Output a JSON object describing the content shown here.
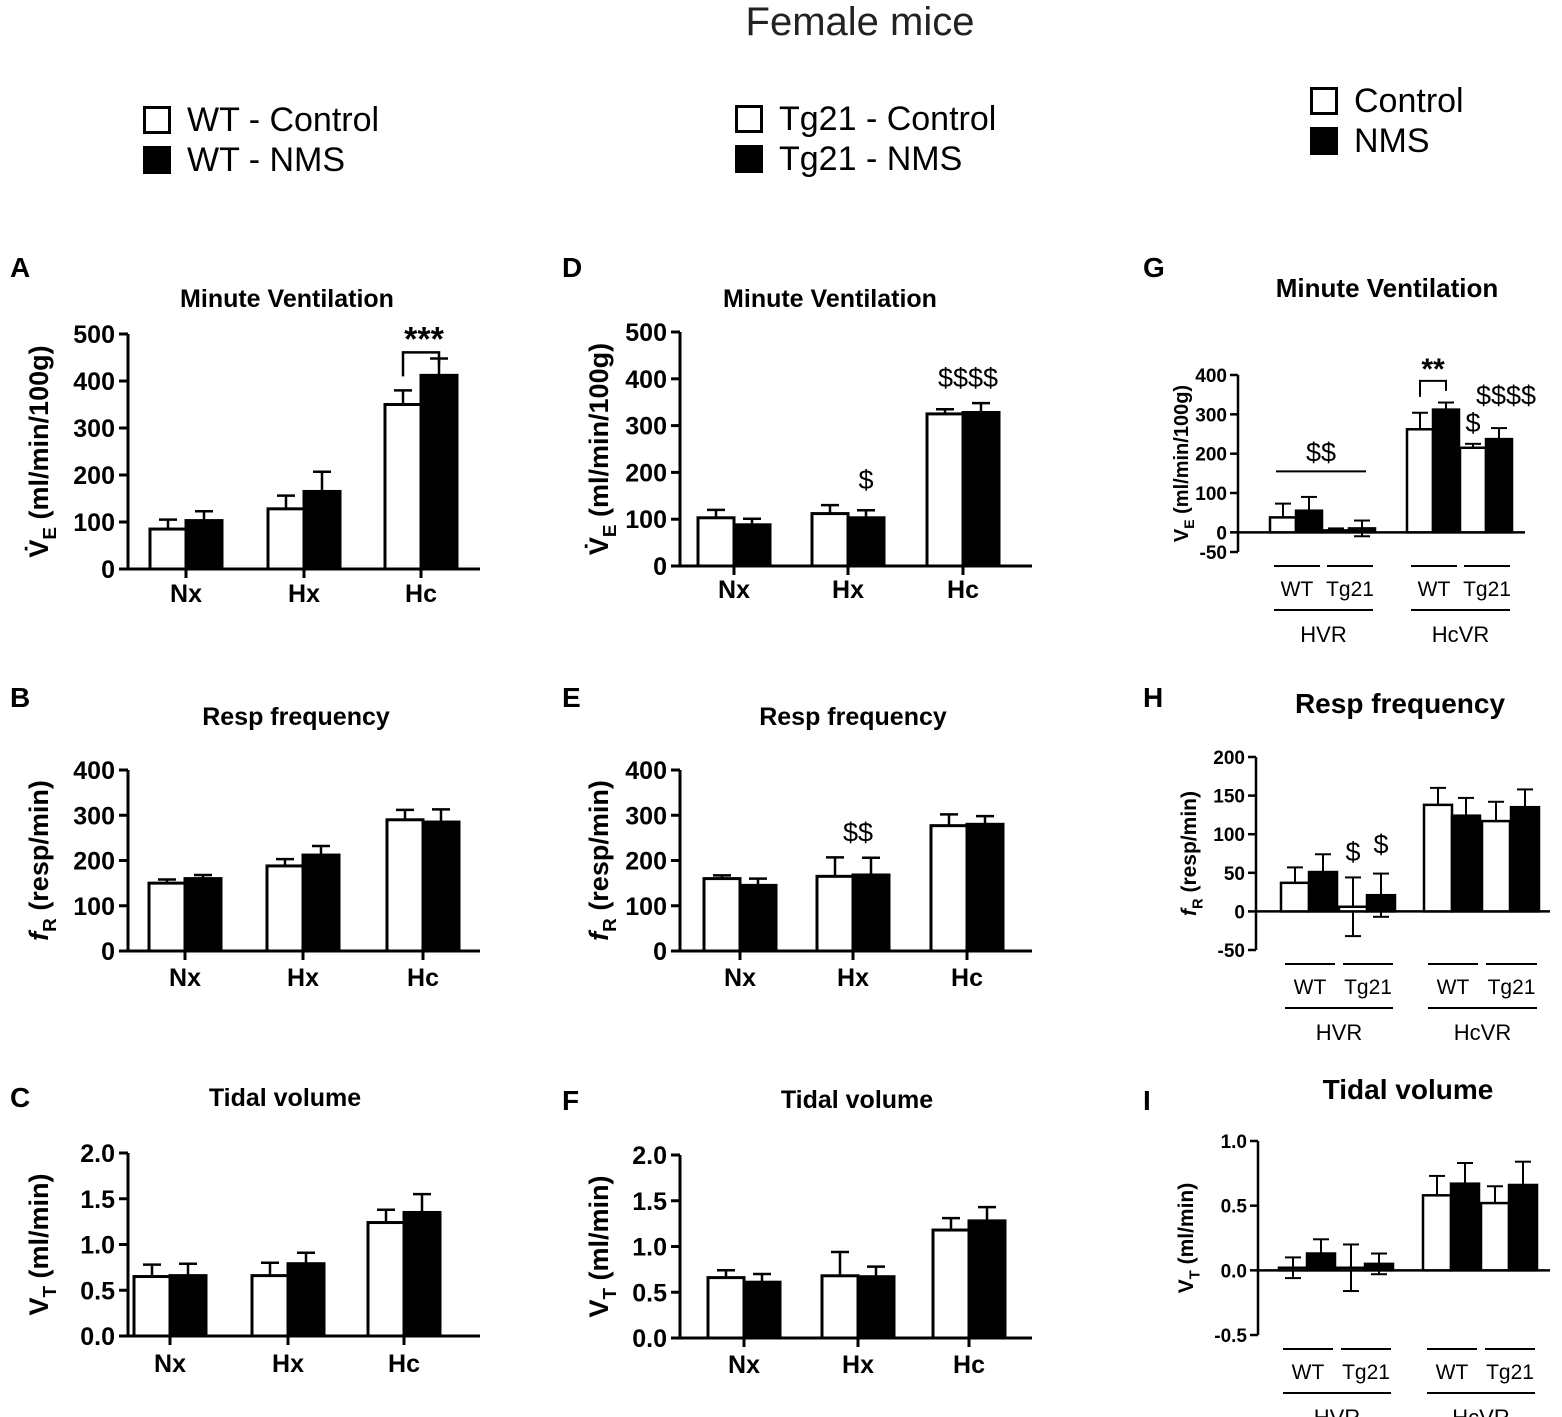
{
  "main_title": "Female mice",
  "legends": {
    "wt": {
      "control": "WT - Control",
      "nms": "WT - NMS"
    },
    "tg21": {
      "control": "Tg21 - Control",
      "nms": "Tg21 - NMS"
    },
    "responses": {
      "control": "Control",
      "nms": "NMS"
    }
  },
  "colors": {
    "control": "#ffffff",
    "nms": "#000000"
  },
  "chart_data": [
    {
      "panel": "A",
      "type": "bar",
      "title": "Minute Ventilation",
      "ylabel": "V̇E (ml/min/100g)",
      "ylim": [
        0,
        500
      ],
      "yticks": [
        "0",
        "100",
        "200",
        "300",
        "400",
        "500"
      ],
      "categories": [
        "Nx",
        "Hx",
        "Hc"
      ],
      "series": [
        {
          "name": "WT - Control",
          "values": [
            85,
            128,
            350
          ],
          "errors": [
            20,
            28,
            30
          ]
        },
        {
          "name": "WT - NMS",
          "values": [
            103,
            165,
            412
          ],
          "errors": [
            20,
            42,
            36
          ]
        }
      ],
      "annotations": [
        {
          "text": "***",
          "category": "Hc"
        }
      ]
    },
    {
      "panel": "B",
      "type": "bar",
      "title": "Resp frequency",
      "ylabel": "fR (resp/min)",
      "ylim": [
        0,
        400
      ],
      "yticks": [
        "0",
        "100",
        "200",
        "300",
        "400"
      ],
      "categories": [
        "Nx",
        "Hx",
        "Hc"
      ],
      "series": [
        {
          "name": "WT - Control",
          "values": [
            150,
            188,
            290
          ],
          "errors": [
            8,
            15,
            22
          ]
        },
        {
          "name": "WT - NMS",
          "values": [
            160,
            212,
            285
          ],
          "errors": [
            8,
            20,
            28
          ]
        }
      ]
    },
    {
      "panel": "C",
      "type": "bar",
      "title": "Tidal volume",
      "ylabel": "VT (ml/min)",
      "ylim": [
        0,
        2.0
      ],
      "yticks": [
        "0.0",
        "0.5",
        "1.0",
        "1.5",
        "2.0"
      ],
      "categories": [
        "Nx",
        "Hx",
        "Hc"
      ],
      "series": [
        {
          "name": "WT - Control",
          "values": [
            0.65,
            0.66,
            1.24
          ],
          "errors": [
            0.13,
            0.14,
            0.14
          ]
        },
        {
          "name": "WT - NMS",
          "values": [
            0.66,
            0.79,
            1.35
          ],
          "errors": [
            0.13,
            0.12,
            0.2
          ]
        }
      ]
    },
    {
      "panel": "D",
      "type": "bar",
      "title": "Minute Ventilation",
      "ylabel": "V̇E (ml/min/100g)",
      "ylim": [
        0,
        500
      ],
      "yticks": [
        "0",
        "100",
        "200",
        "300",
        "400",
        "500"
      ],
      "categories": [
        "Nx",
        "Hx",
        "Hc"
      ],
      "series": [
        {
          "name": "Tg21 - Control",
          "values": [
            103,
            112,
            325
          ],
          "errors": [
            17,
            18,
            10
          ]
        },
        {
          "name": "Tg21 - NMS",
          "values": [
            88,
            103,
            328
          ],
          "errors": [
            13,
            16,
            20
          ]
        }
      ],
      "annotations": [
        {
          "text": "$",
          "category": "Hx"
        },
        {
          "text": "$$$$",
          "category": "Hc"
        }
      ]
    },
    {
      "panel": "E",
      "type": "bar",
      "title": "Resp frequency",
      "ylabel": "fR (resp/min)",
      "ylim": [
        0,
        400
      ],
      "yticks": [
        "0",
        "100",
        "200",
        "300",
        "400"
      ],
      "categories": [
        "Nx",
        "Hx",
        "Hc"
      ],
      "series": [
        {
          "name": "Tg21 - Control",
          "values": [
            160,
            165,
            277
          ],
          "errors": [
            7,
            42,
            25
          ]
        },
        {
          "name": "Tg21 - NMS",
          "values": [
            145,
            168,
            280
          ],
          "errors": [
            15,
            38,
            18
          ]
        }
      ],
      "annotations": [
        {
          "text": "$$",
          "category": "Hx"
        }
      ]
    },
    {
      "panel": "F",
      "type": "bar",
      "title": "Tidal volume",
      "ylabel": "VT (ml/min)",
      "ylim": [
        0,
        2.0
      ],
      "yticks": [
        "0.0",
        "0.5",
        "1.0",
        "1.5",
        "2.0"
      ],
      "categories": [
        "Nx",
        "Hx",
        "Hc"
      ],
      "series": [
        {
          "name": "Tg21 - Control",
          "values": [
            0.66,
            0.68,
            1.18
          ],
          "errors": [
            0.08,
            0.26,
            0.13
          ]
        },
        {
          "name": "Tg21 - NMS",
          "values": [
            0.61,
            0.67,
            1.28
          ],
          "errors": [
            0.09,
            0.11,
            0.15
          ]
        }
      ]
    },
    {
      "panel": "G",
      "type": "bar",
      "title": "Minute Ventilation",
      "ylabel": "VE (ml/min/100g)",
      "ylim": [
        -50,
        400
      ],
      "yticks": [
        "-50",
        "0",
        "100",
        "200",
        "300",
        "400"
      ],
      "categories": [
        "WT",
        "Tg21",
        "WT",
        "Tg21"
      ],
      "groups": [
        "HVR",
        "HcVR"
      ],
      "series": [
        {
          "name": "Control",
          "values": [
            38,
            5,
            262,
            215
          ],
          "errors": [
            35,
            5,
            42,
            10
          ]
        },
        {
          "name": "NMS",
          "values": [
            55,
            10,
            312,
            237
          ],
          "errors": [
            35,
            20,
            18,
            28
          ]
        }
      ],
      "annotations": [
        {
          "text": "$$",
          "group": "HVR"
        },
        {
          "text": "**",
          "bar": "HcVR WT"
        },
        {
          "text": "$",
          "bar": "HcVR Tg21 Control"
        },
        {
          "text": "$$$$",
          "bar": "HcVR Tg21 NMS"
        }
      ]
    },
    {
      "panel": "H",
      "type": "bar",
      "title": "Resp frequency",
      "ylabel": "fR (resp/min)",
      "ylim": [
        -50,
        200
      ],
      "yticks": [
        "-50",
        "0",
        "50",
        "100",
        "150",
        "200"
      ],
      "categories": [
        "WT",
        "Tg21",
        "WT",
        "Tg21"
      ],
      "groups": [
        "HVR",
        "HcVR"
      ],
      "series": [
        {
          "name": "Control",
          "values": [
            37,
            6,
            138,
            117
          ],
          "errors": [
            20,
            38,
            22,
            25
          ]
        },
        {
          "name": "NMS",
          "values": [
            51,
            21,
            124,
            135
          ],
          "errors": [
            23,
            28,
            23,
            23
          ]
        }
      ],
      "annotations": [
        {
          "text": "$",
          "bar": "HVR Tg21 Control"
        },
        {
          "text": "$",
          "bar": "HVR Tg21 NMS"
        }
      ]
    },
    {
      "panel": "I",
      "type": "bar",
      "title": "Tidal volume",
      "ylabel": "VT (ml/min)",
      "ylim": [
        -0.5,
        1.0
      ],
      "yticks": [
        "-0.5",
        "0.0",
        "0.5",
        "1.0"
      ],
      "categories": [
        "WT",
        "Tg21",
        "WT",
        "Tg21"
      ],
      "groups": [
        "HVR",
        "HcVR"
      ],
      "series": [
        {
          "name": "Control",
          "values": [
            0.02,
            0.02,
            0.58,
            0.52
          ],
          "errors": [
            0.08,
            0.18,
            0.15,
            0.13
          ]
        },
        {
          "name": "NMS",
          "values": [
            0.13,
            0.05,
            0.67,
            0.66
          ],
          "errors": [
            0.11,
            0.08,
            0.16,
            0.18
          ]
        }
      ]
    }
  ]
}
